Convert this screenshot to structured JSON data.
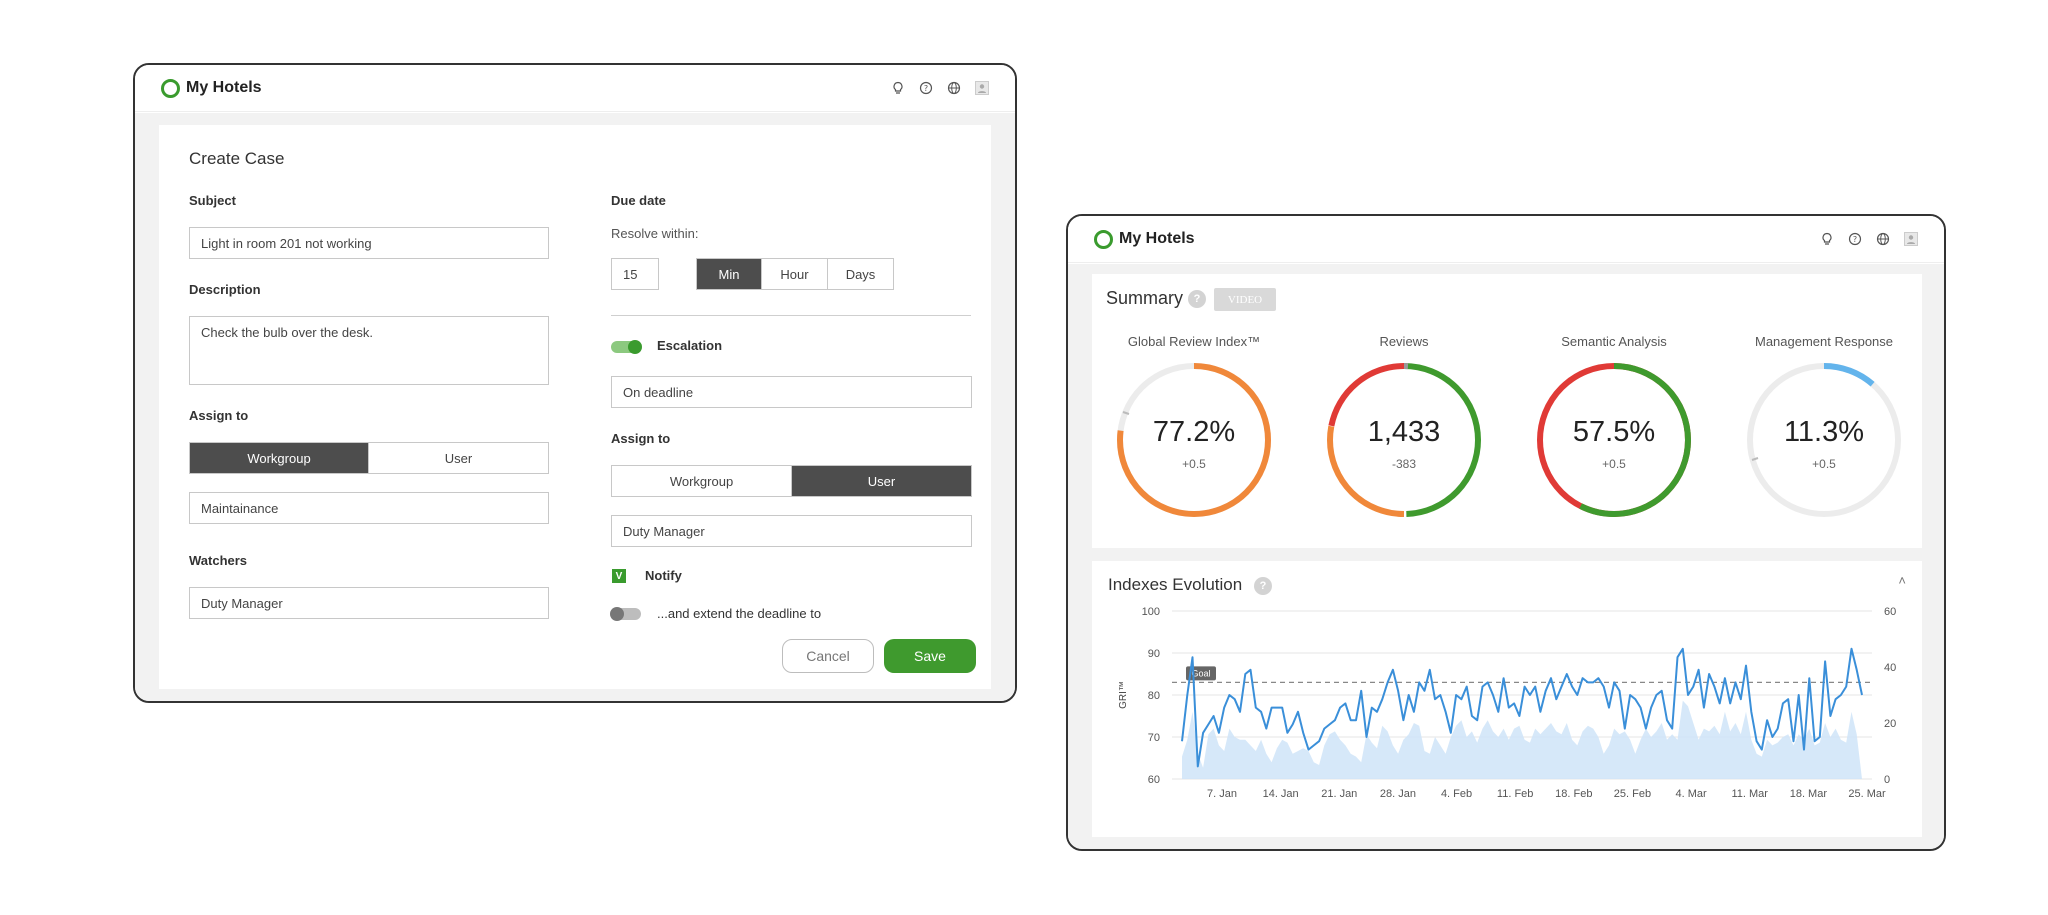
{
  "window1": {
    "app_title": "My Hotels",
    "icons": [
      "bulb-icon",
      "help-icon",
      "globe-icon",
      "user-icon"
    ],
    "form": {
      "title": "Create Case",
      "subject_label": "Subject",
      "subject_value": "Light in room 201 not working",
      "description_label": "Description",
      "description_value": "Check the bulb over the desk.",
      "assign_label": "Assign to",
      "assign_options": [
        "Workgroup",
        "User"
      ],
      "assign_selected": "Workgroup",
      "assign_value": "Maintainance",
      "watchers_label": "Watchers",
      "watchers_value": "Duty Manager",
      "due_label": "Due date",
      "resolve_label": "Resolve within:",
      "resolve_value": "15",
      "unit_options": [
        "Min",
        "Hour",
        "Days"
      ],
      "unit_selected": "Min",
      "escalation_label": "Escalation",
      "escalation_on": true,
      "escalation_value": "On deadline",
      "assign2_label": "Assign to",
      "assign2_options": [
        "Workgroup",
        "User"
      ],
      "assign2_selected": "User",
      "assign2_value": "Duty Manager",
      "notify_label": "Notify",
      "notify_checked": true,
      "extend_label": "...and extend the deadline to",
      "extend_on": false,
      "cancel_label": "Cancel",
      "save_label": "Save"
    }
  },
  "window2": {
    "app_title": "My Hotels",
    "summary": {
      "title": "Summary",
      "help": "?",
      "video_label": "VIDEO",
      "gauges": [
        {
          "name": "Global Review Index™",
          "value": "77.2%",
          "delta": "+0.5"
        },
        {
          "name": "Reviews",
          "value": "1,433",
          "delta": "-383"
        },
        {
          "name": "Semantic Analysis",
          "value": "57.5%",
          "delta": "+0.5"
        },
        {
          "name": "Management Response",
          "value": "11.3%",
          "delta": "+0.5"
        }
      ]
    },
    "indexes": {
      "title": "Indexes Evolution",
      "help": "?",
      "collapse_icon": "chevron-up-icon"
    }
  },
  "chart_data": {
    "type": "line",
    "title": "",
    "ylabel": "GRI™",
    "ylim": [
      60,
      100
    ],
    "y_ticks": [
      100,
      90,
      80,
      70,
      60
    ],
    "y2lim": [
      0,
      60
    ],
    "y2_ticks": [
      60,
      40,
      20,
      0
    ],
    "x_ticks": [
      "7. Jan",
      "14. Jan",
      "21. Jan",
      "28. Jan",
      "4. Feb",
      "11. Feb",
      "18. Feb",
      "25. Feb",
      "4. Mar",
      "11. Mar",
      "18. Mar",
      "25. Mar"
    ],
    "goal": {
      "label": "Goal",
      "value": 83
    },
    "series": [
      {
        "axis": "left",
        "type": "line",
        "color": "#3a8fd9",
        "values": [
          69,
          80,
          89,
          63,
          71,
          73,
          75,
          71,
          77,
          80,
          79,
          76,
          85,
          86,
          77,
          76,
          72,
          77,
          77,
          77,
          71,
          73,
          76,
          71,
          67,
          68,
          69,
          72,
          73,
          74,
          77,
          78,
          74,
          74,
          81,
          70,
          77,
          76,
          79,
          83,
          86,
          81,
          74,
          80,
          76,
          83,
          81,
          86,
          79,
          80,
          76,
          71,
          80,
          79,
          82,
          75,
          74,
          82,
          83,
          80,
          76,
          84,
          77,
          78,
          75,
          82,
          80,
          82,
          76,
          81,
          84,
          79,
          82,
          85,
          82,
          80,
          84,
          83,
          83,
          84,
          82,
          77,
          83,
          81,
          72,
          80,
          79,
          77,
          72,
          77,
          80,
          81,
          74,
          72,
          89,
          91,
          80,
          82,
          86,
          77,
          85,
          82,
          78,
          84,
          78,
          83,
          79,
          87,
          76,
          69,
          67,
          74,
          70,
          72,
          78,
          79,
          69,
          80,
          67,
          84,
          69,
          70,
          88,
          75,
          79,
          80,
          82,
          91,
          86,
          80
        ]
      },
      {
        "axis": "right",
        "type": "area",
        "color": "#cfe4f8",
        "values": [
          8,
          14,
          24,
          9,
          4,
          16,
          18,
          12,
          10,
          18,
          15,
          14,
          14,
          12,
          10,
          14,
          9,
          6,
          11,
          14,
          13,
          9,
          10,
          11,
          10,
          6,
          5,
          12,
          16,
          17,
          14,
          12,
          9,
          8,
          6,
          16,
          13,
          11,
          19,
          17,
          12,
          9,
          14,
          16,
          20,
          19,
          10,
          9,
          15,
          12,
          9,
          15,
          19,
          21,
          15,
          17,
          13,
          18,
          21,
          17,
          15,
          18,
          14,
          18,
          19,
          14,
          13,
          18,
          16,
          18,
          20,
          17,
          16,
          20,
          14,
          12,
          17,
          19,
          18,
          15,
          9,
          12,
          18,
          16,
          17,
          14,
          9,
          14,
          18,
          15,
          17,
          20,
          14,
          16,
          14,
          28,
          26,
          20,
          14,
          18,
          17,
          19,
          16,
          24,
          17,
          20,
          16,
          24,
          14,
          9,
          8,
          14,
          12,
          13,
          15,
          16,
          12,
          16,
          14,
          18,
          12,
          13,
          20,
          15,
          18,
          14,
          13,
          24,
          16,
          0
        ]
      }
    ]
  }
}
